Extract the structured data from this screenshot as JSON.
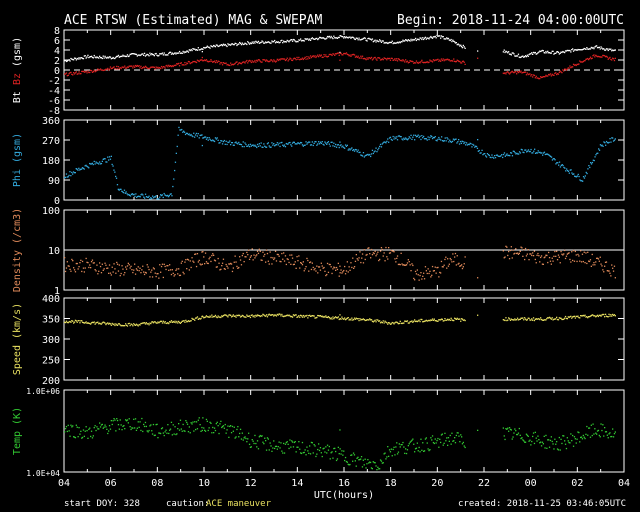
{
  "header": {
    "title": "ACE RTSW (Estimated) MAG & SWEPAM",
    "begin": "Begin: 2018-11-24 04:00:00UTC"
  },
  "footer": {
    "start_doy": "start DOY: 328",
    "caution_label": "caution:",
    "caution_value": "ACE maneuver",
    "created": "created: 2018-11-25 03:46:05UTC"
  },
  "colors": {
    "bt": "#ffffff",
    "bz": "#dd2222",
    "phi": "#33aadd",
    "density": "#e08a5a",
    "speed": "#e8e060",
    "temp": "#33cc33",
    "axis": "#ffffff",
    "background": "#000000"
  },
  "chart_data": [
    {
      "type": "scatter",
      "panel": "mag",
      "ylabel_bt": "Bt",
      "ylabel_bz": "Bz",
      "ylabel_unit": "(gsm)",
      "ylim": [
        -8,
        8
      ],
      "yticks": [
        "8",
        "6",
        "4",
        "2",
        "0",
        "-2",
        "-4",
        "-6",
        "-8"
      ],
      "zero_line": "dashed",
      "series": [
        {
          "name": "Bt",
          "color": "#ffffff",
          "x": [
            4,
            5,
            6,
            7,
            8,
            9,
            10,
            11,
            12,
            13,
            14,
            15,
            16,
            17,
            18,
            19,
            20,
            20.6,
            21.2,
            22,
            22.8,
            23.6,
            0.4,
            1.2,
            2,
            2.8,
            3.6,
            4
          ],
          "values": [
            2.0,
            2.8,
            2.6,
            3.2,
            3.2,
            3.7,
            4.6,
            5.1,
            5.6,
            5.8,
            6.0,
            6.5,
            6.8,
            6.2,
            5.6,
            6.2,
            6.9,
            6.0,
            4.5,
            null,
            3.9,
            2.8,
            3.8,
            3.5,
            4.3,
            4.7,
            3.9,
            3.5
          ]
        },
        {
          "name": "Bz",
          "color": "#dd2222",
          "x": [
            4,
            5,
            6,
            7,
            8,
            9,
            10,
            11,
            12,
            13,
            14,
            15,
            16,
            17,
            18,
            19,
            20,
            20.6,
            21.2,
            22,
            22.8,
            23.6,
            0.4,
            1.2,
            2,
            2.8,
            3.6,
            4
          ],
          "values": [
            -0.8,
            -0.2,
            0.5,
            0.8,
            0.5,
            1.3,
            2.2,
            1.2,
            1.9,
            2.0,
            2.4,
            2.9,
            3.4,
            2.4,
            2.3,
            1.7,
            2.0,
            2.2,
            1.5,
            null,
            -0.5,
            -0.3,
            -1.5,
            -0.4,
            1.5,
            3.1,
            2.2,
            2.5
          ]
        }
      ]
    },
    {
      "type": "scatter",
      "panel": "phi",
      "ylabel": "Phi (gsm)",
      "ylim": [
        0,
        360
      ],
      "yticks": [
        "360",
        "270",
        "180",
        "90",
        "0"
      ],
      "series": [
        {
          "name": "Phi",
          "color": "#33aadd",
          "x": [
            4,
            4.8,
            5.5,
            6.0,
            6.3,
            6.6,
            7.2,
            8.0,
            8.6,
            8.9,
            9.3,
            10,
            11,
            12,
            13,
            14,
            15,
            16,
            17,
            18,
            19,
            20,
            20.7,
            21.3,
            22.2,
            23,
            23.8,
            0.6,
            1.4,
            2.2,
            3,
            3.6,
            4
          ],
          "values": [
            110,
            150,
            175,
            190,
            60,
            35,
            20,
            15,
            30,
            320,
            300,
            285,
            260,
            250,
            250,
            255,
            260,
            245,
            200,
            280,
            285,
            280,
            270,
            255,
            200,
            205,
            230,
            210,
            150,
            95,
            250,
            280,
            250
          ]
        }
      ]
    },
    {
      "type": "scatter",
      "panel": "density",
      "ylabel": "Density (/cm3)",
      "scale": "log",
      "ylim": [
        1,
        100
      ],
      "yticks": [
        "100",
        "10",
        "1"
      ],
      "ref_line": 10,
      "series": [
        {
          "name": "Density",
          "color": "#e08a5a",
          "x": [
            4,
            5,
            6,
            7,
            8,
            9,
            10,
            11,
            12,
            13,
            14,
            15,
            16,
            17,
            18,
            19,
            20,
            20.6,
            21.2,
            22,
            22.8,
            23.6,
            0.4,
            1.2,
            2,
            2.8,
            3.6,
            4
          ],
          "values": [
            4.5,
            4.3,
            3.5,
            3.2,
            3.0,
            3.5,
            7.0,
            3.5,
            8.0,
            6.5,
            5.0,
            3.5,
            3.2,
            8.0,
            8.5,
            2.5,
            3.0,
            6.0,
            5.0,
            null,
            9.0,
            8.5,
            6.5,
            7.0,
            7.5,
            5.0,
            3.0,
            3.5
          ]
        }
      ]
    },
    {
      "type": "scatter",
      "panel": "speed",
      "ylabel": "Speed (km/s)",
      "ylim": [
        200,
        400
      ],
      "yticks": [
        "400",
        "350",
        "300",
        "250",
        "200"
      ],
      "series": [
        {
          "name": "Speed",
          "color": "#e8e060",
          "x": [
            4,
            5,
            6,
            7,
            8,
            9,
            10,
            11,
            12,
            13,
            14,
            15,
            16,
            17,
            18,
            19,
            20,
            20.6,
            21.2,
            22,
            22.8,
            23.6,
            0.4,
            1.2,
            2,
            2.8,
            3.6,
            4
          ],
          "values": [
            345,
            342,
            338,
            336,
            342,
            343,
            356,
            358,
            357,
            360,
            357,
            355,
            352,
            348,
            340,
            345,
            348,
            350,
            347,
            null,
            350,
            350,
            350,
            352,
            355,
            358,
            360,
            360
          ]
        }
      ]
    },
    {
      "type": "scatter",
      "panel": "temp",
      "ylabel": "Temp (K)",
      "scale": "log",
      "ylim": [
        10000,
        1000000
      ],
      "yticks": [
        "1.0E+06",
        "1.0E+04"
      ],
      "series": [
        {
          "name": "Temp",
          "color": "#33cc33",
          "x": [
            4,
            5,
            6,
            7,
            8,
            9,
            10,
            11,
            12,
            13,
            14,
            15,
            16,
            16.8,
            17.5,
            18,
            19,
            20,
            20.6,
            21.2,
            22,
            22.8,
            23.6,
            0.4,
            1.2,
            2,
            2.8,
            3.6,
            4
          ],
          "values": [
            120000,
            90000,
            140000,
            160000,
            100000,
            130000,
            150000,
            110000,
            60000,
            45000,
            40000,
            35000,
            25000,
            17000,
            16000,
            38000,
            45000,
            55000,
            70000,
            60000,
            null,
            90000,
            80000,
            60000,
            50000,
            70000,
            110000,
            80000,
            110000
          ]
        }
      ]
    },
    {
      "type": "axis",
      "panel": "x",
      "xlabel": "UTC(hours)",
      "xticks": [
        "04",
        "06",
        "08",
        "10",
        "12",
        "14",
        "16",
        "18",
        "20",
        "22",
        "00",
        "02",
        "04"
      ]
    }
  ]
}
